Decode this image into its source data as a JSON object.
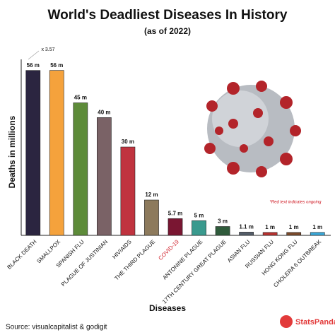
{
  "chart_data": {
    "type": "bar",
    "title": "World's Deadliest Diseases In History",
    "subtitle": "(as of 2022)",
    "x_label": "Diseases",
    "y_label": "Deaths in millions",
    "categories": [
      "BLACK DEATH",
      "SMALLPOX",
      "SPANISH FLU",
      "PLAGUE OF JUSTINIAN",
      "HIV/AIDS",
      "THE THIRD PLAGUE",
      "COVID-19",
      "ANTONINE PLAGUE",
      "17TH CENTURY GREAT PLAGUE",
      "ASIAN FLU",
      "RUSSIAN FLU",
      "HONG KONG FLU",
      "CHOLERA 6 OUTBREAK"
    ],
    "values": [
      56,
      56,
      45,
      40,
      30,
      12,
      5.7,
      5,
      3,
      1.1,
      1,
      1,
      1
    ],
    "value_labels": [
      "56 m",
      "56 m",
      "45 m",
      "40 m",
      "30 m",
      "12 m",
      "5.7 m",
      "5 m",
      "3 m",
      "1.1 m",
      "1 m",
      "1 m",
      "1 m"
    ],
    "colors": [
      "#2b2540",
      "#f5a23c",
      "#5d8b39",
      "#7a6266",
      "#c0333f",
      "#8d7a5c",
      "#7a1632",
      "#3a9a8e",
      "#2f5b3b",
      "#545d69",
      "#b8312f",
      "#7b4b2b",
      "#3aa8d8"
    ],
    "ongoing": [
      false,
      false,
      false,
      false,
      false,
      false,
      true,
      false,
      false,
      false,
      false,
      false,
      false
    ],
    "ongoing_color": "#d0202a",
    "ylim": [
      0,
      60
    ],
    "annotations": [
      "x 3.57",
      "*Red text indicates ongoing"
    ],
    "source": "Source: visualcapitalist & godigit",
    "brand": "StatsPanda"
  }
}
